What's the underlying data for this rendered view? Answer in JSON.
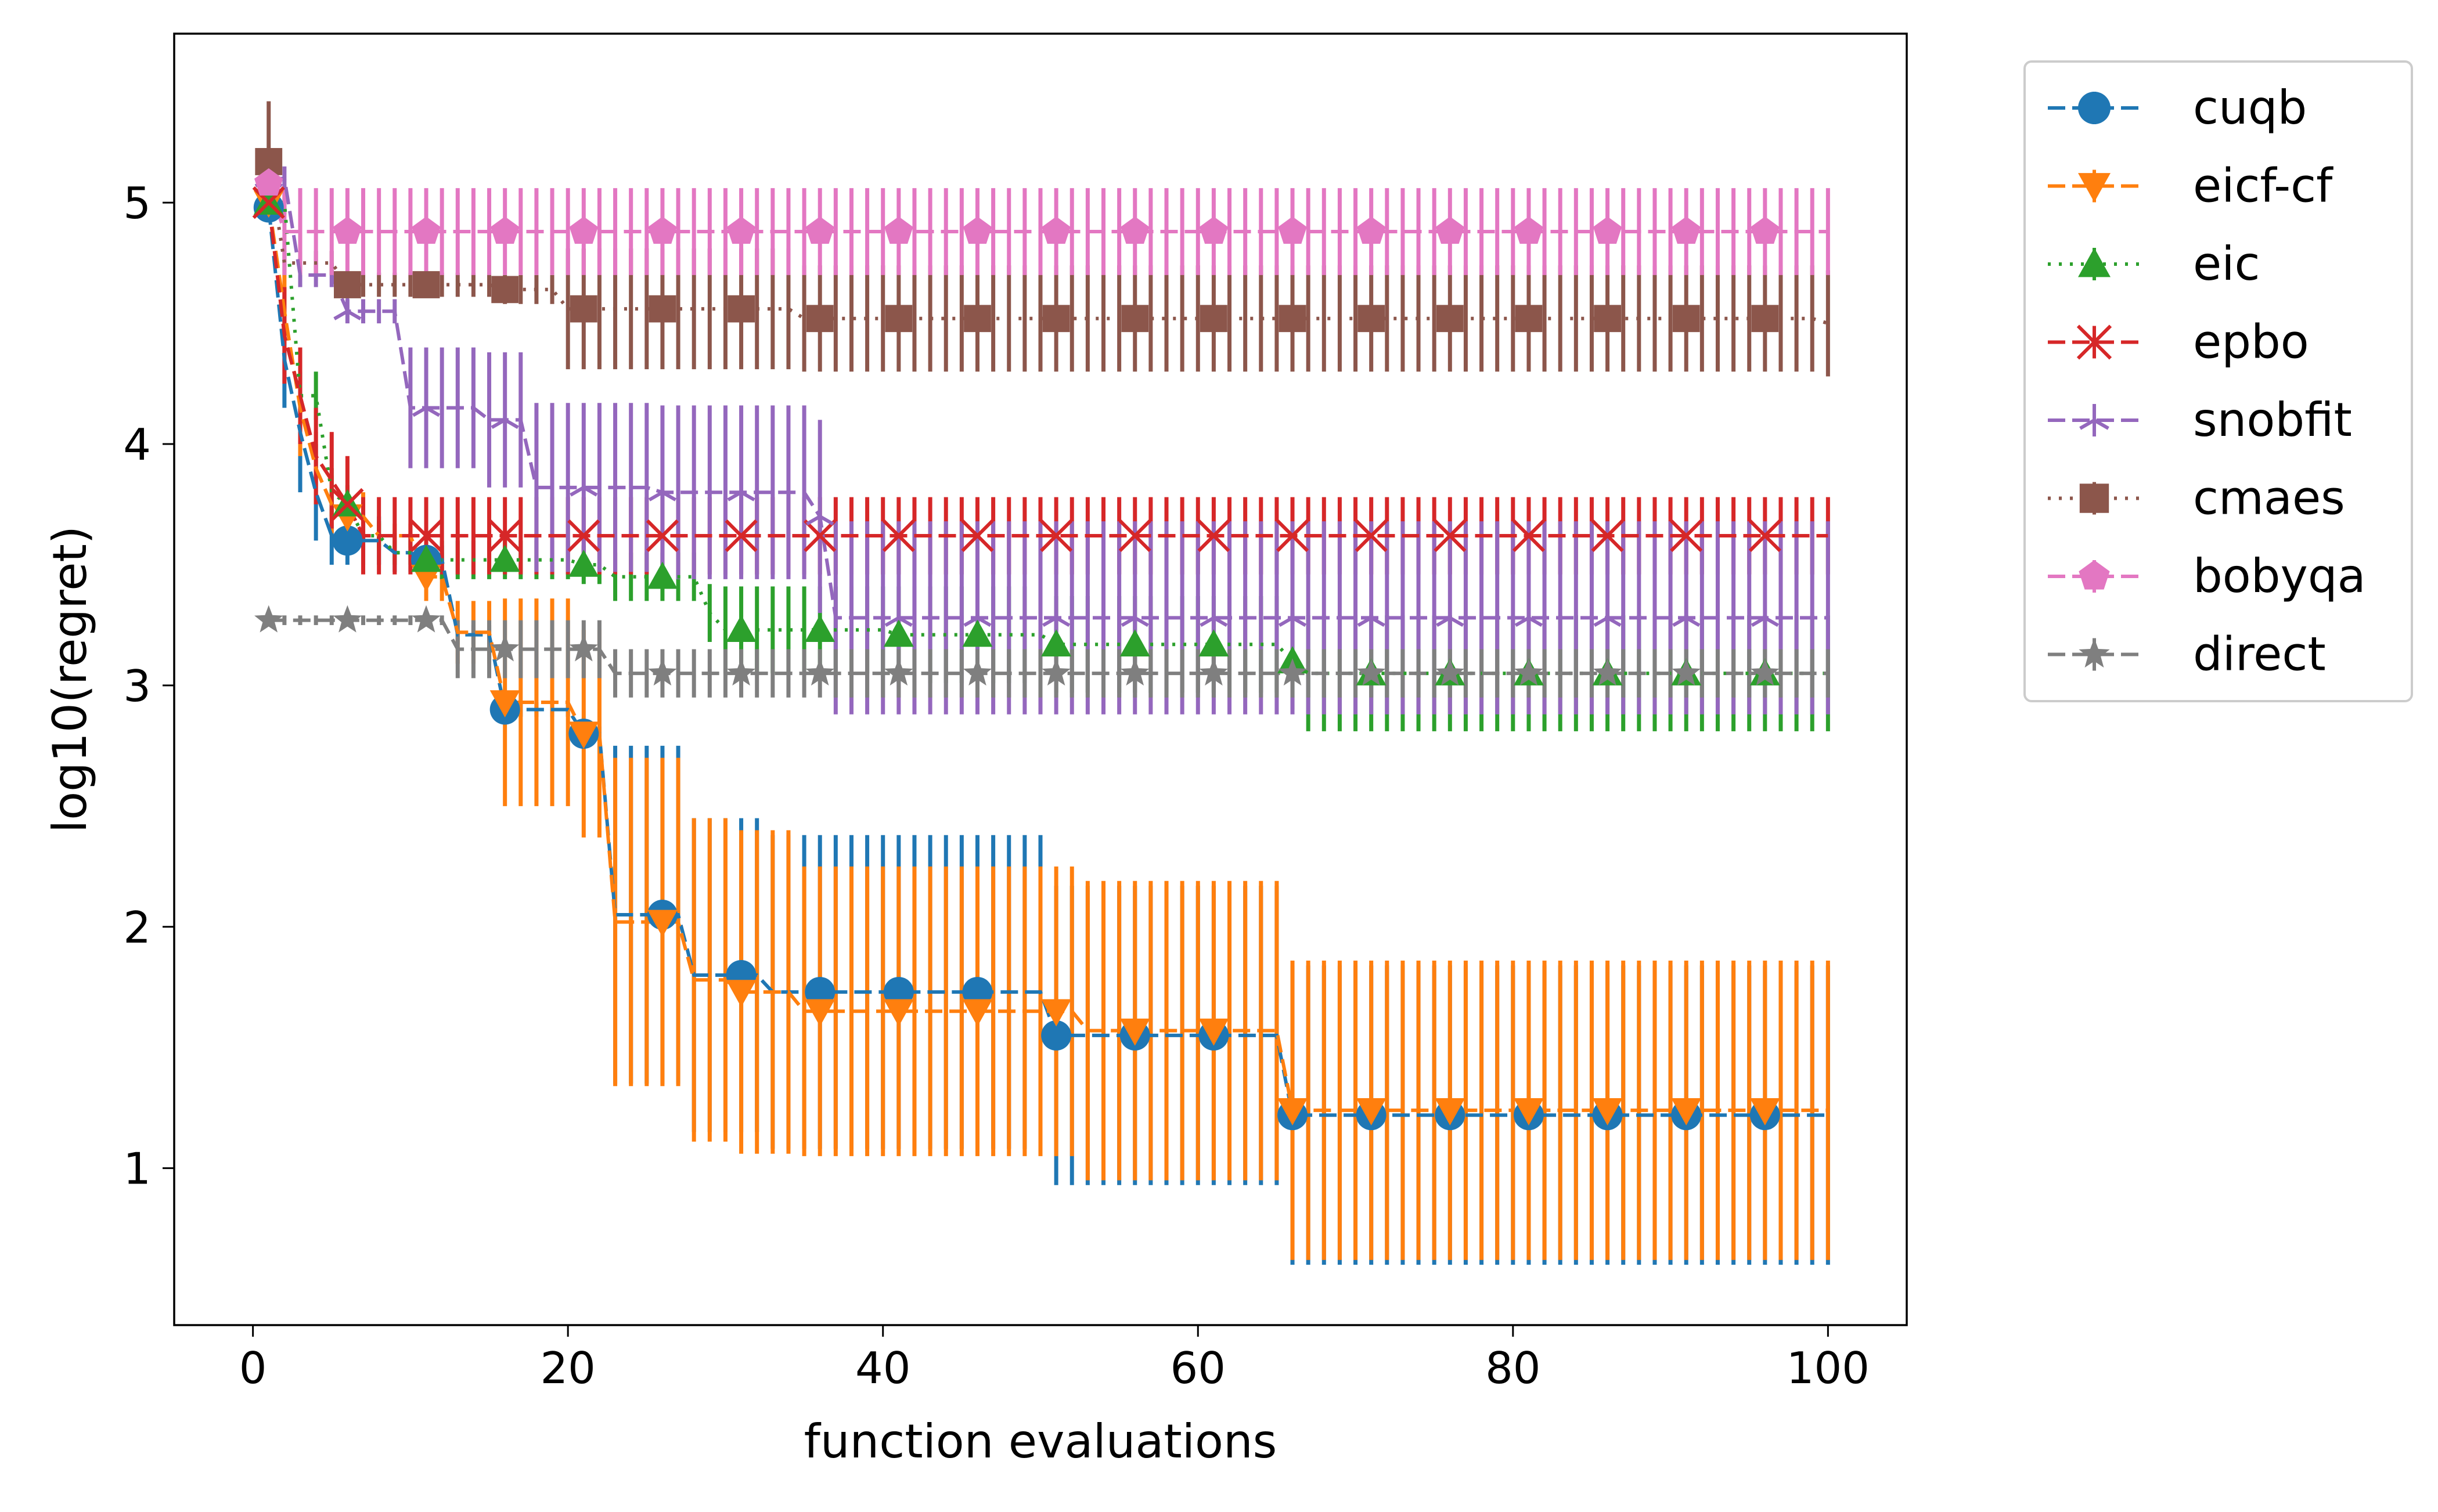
{
  "chart_data": {
    "type": "line",
    "xlabel": "function evaluations",
    "ylabel": "log10(regret)",
    "xlim": [
      -5,
      105
    ],
    "ylim": [
      0.35,
      5.7
    ],
    "xticks": [
      0,
      20,
      40,
      60,
      80,
      100
    ],
    "xtick_labels": [
      "0",
      "20",
      "40",
      "60",
      "80",
      "100"
    ],
    "yticks": [
      1,
      2,
      3,
      4,
      5
    ],
    "ytick_labels": [
      "1",
      "2",
      "3",
      "4",
      "5"
    ],
    "legend_position": "outside-top-right",
    "series": [
      {
        "name": "cuqb",
        "color": "#1f77b4",
        "linestyle": "dashed",
        "marker": "circle",
        "steps": [
          [
            1,
            4.98
          ],
          [
            2,
            4.35
          ],
          [
            3,
            4.05
          ],
          [
            4,
            3.8
          ],
          [
            5,
            3.62
          ],
          [
            6,
            3.6
          ],
          [
            9,
            3.55
          ],
          [
            11,
            3.52
          ],
          [
            13,
            3.21
          ],
          [
            16,
            2.9
          ],
          [
            21,
            2.8
          ],
          [
            23,
            2.05
          ],
          [
            28,
            1.8
          ],
          [
            33,
            1.73
          ],
          [
            51,
            1.55
          ],
          [
            66,
            1.22
          ],
          [
            100,
            1.22
          ]
        ],
        "err_steps": [
          [
            1,
            0.05
          ],
          [
            2,
            0.2
          ],
          [
            3,
            0.25
          ],
          [
            4,
            0.2
          ],
          [
            5,
            0.12
          ],
          [
            6,
            0.1
          ],
          [
            9,
            0.08
          ],
          [
            11,
            0.06
          ],
          [
            13,
            0.04
          ],
          [
            16,
            0.03
          ],
          [
            21,
            0.03
          ],
          [
            23,
            0.7
          ],
          [
            28,
            0.65
          ],
          [
            33,
            0.65
          ],
          [
            51,
            0.62
          ],
          [
            66,
            0.62
          ],
          [
            100,
            0.62
          ]
        ]
      },
      {
        "name": "eicf-cf",
        "color": "#ff7f0e",
        "linestyle": "dashed",
        "marker": "triangle-down",
        "steps": [
          [
            1,
            5.0
          ],
          [
            2,
            4.55
          ],
          [
            3,
            4.15
          ],
          [
            4,
            3.9
          ],
          [
            5,
            3.75
          ],
          [
            6,
            3.7
          ],
          [
            8,
            3.62
          ],
          [
            11,
            3.45
          ],
          [
            13,
            3.22
          ],
          [
            16,
            2.93
          ],
          [
            21,
            2.8
          ],
          [
            23,
            2.02
          ],
          [
            28,
            1.78
          ],
          [
            31,
            1.73
          ],
          [
            35,
            1.65
          ],
          [
            51,
            1.65
          ],
          [
            53,
            1.57
          ],
          [
            66,
            1.24
          ],
          [
            100,
            1.24
          ]
        ],
        "err_steps": [
          [
            1,
            0.05
          ],
          [
            2,
            0.15
          ],
          [
            3,
            0.2
          ],
          [
            4,
            0.15
          ],
          [
            5,
            0.12
          ],
          [
            6,
            0.1
          ],
          [
            8,
            0.05
          ],
          [
            11,
            0.1
          ],
          [
            13,
            0.13
          ],
          [
            16,
            0.43
          ],
          [
            21,
            0.43
          ],
          [
            23,
            0.68
          ],
          [
            28,
            0.67
          ],
          [
            31,
            0.67
          ],
          [
            35,
            0.6
          ],
          [
            51,
            0.6
          ],
          [
            53,
            0.62
          ],
          [
            66,
            0.62
          ],
          [
            100,
            0.62
          ]
        ]
      },
      {
        "name": "eic",
        "color": "#2ca02c",
        "linestyle": "dotted",
        "marker": "triangle-up",
        "steps": [
          [
            1,
            5.0
          ],
          [
            3,
            4.2
          ],
          [
            5,
            3.8
          ],
          [
            6,
            3.75
          ],
          [
            7,
            3.62
          ],
          [
            9,
            3.55
          ],
          [
            11,
            3.52
          ],
          [
            21,
            3.5
          ],
          [
            23,
            3.45
          ],
          [
            29,
            3.3
          ],
          [
            30,
            3.23
          ],
          [
            41,
            3.21
          ],
          [
            51,
            3.17
          ],
          [
            66,
            3.1
          ],
          [
            67,
            3.05
          ],
          [
            100,
            3.05
          ]
        ],
        "err_steps": [
          [
            1,
            0.05
          ],
          [
            3,
            0.1
          ],
          [
            5,
            0.1
          ],
          [
            6,
            0.08
          ],
          [
            7,
            0.06
          ],
          [
            9,
            0.05
          ],
          [
            11,
            0.08
          ],
          [
            21,
            0.08
          ],
          [
            23,
            0.1
          ],
          [
            29,
            0.12
          ],
          [
            30,
            0.18
          ],
          [
            41,
            0.2
          ],
          [
            51,
            0.2
          ],
          [
            66,
            0.2
          ],
          [
            67,
            0.24
          ],
          [
            100,
            0.24
          ]
        ]
      },
      {
        "name": "epbo",
        "color": "#d62728",
        "linestyle": "dashed",
        "marker": "x",
        "steps": [
          [
            1,
            5.0
          ],
          [
            2,
            4.45
          ],
          [
            3,
            4.2
          ],
          [
            4,
            3.95
          ],
          [
            5,
            3.85
          ],
          [
            6,
            3.75
          ],
          [
            7,
            3.62
          ],
          [
            100,
            3.62
          ]
        ],
        "err_steps": [
          [
            1,
            0.05
          ],
          [
            2,
            0.2
          ],
          [
            3,
            0.2
          ],
          [
            4,
            0.2
          ],
          [
            5,
            0.2
          ],
          [
            6,
            0.2
          ],
          [
            7,
            0.16
          ],
          [
            100,
            0.16
          ]
        ]
      },
      {
        "name": "snobfit",
        "color": "#9467bd",
        "linestyle": "dashed",
        "marker": "tri",
        "steps": [
          [
            1,
            5.1
          ],
          [
            3,
            4.7
          ],
          [
            6,
            4.55
          ],
          [
            10,
            4.15
          ],
          [
            15,
            4.1
          ],
          [
            18,
            3.82
          ],
          [
            26,
            3.8
          ],
          [
            36,
            3.7
          ],
          [
            37,
            3.28
          ],
          [
            100,
            3.28
          ]
        ],
        "err_steps": [
          [
            1,
            0.05
          ],
          [
            3,
            0.05
          ],
          [
            6,
            0.05
          ],
          [
            10,
            0.25
          ],
          [
            15,
            0.28
          ],
          [
            18,
            0.35
          ],
          [
            26,
            0.36
          ],
          [
            36,
            0.4
          ],
          [
            37,
            0.4
          ],
          [
            100,
            0.4
          ]
        ]
      },
      {
        "name": "cmaes",
        "color": "#8c564b",
        "linestyle": "dotted",
        "marker": "square",
        "steps": [
          [
            1,
            5.17
          ],
          [
            2,
            4.75
          ],
          [
            6,
            4.66
          ],
          [
            16,
            4.64
          ],
          [
            20,
            4.56
          ],
          [
            35,
            4.52
          ],
          [
            100,
            4.5
          ]
        ],
        "err_steps": [
          [
            1,
            0.25
          ],
          [
            2,
            0.05
          ],
          [
            6,
            0.05
          ],
          [
            16,
            0.06
          ],
          [
            20,
            0.25
          ],
          [
            35,
            0.22
          ],
          [
            100,
            0.22
          ]
        ]
      },
      {
        "name": "bobyqa",
        "color": "#e377c2",
        "linestyle": "dashed",
        "marker": "pentagon",
        "steps": [
          [
            1,
            5.08
          ],
          [
            2,
            4.88
          ],
          [
            100,
            4.88
          ]
        ],
        "err_steps": [
          [
            1,
            0.05
          ],
          [
            2,
            0.18
          ],
          [
            100,
            0.18
          ]
        ]
      },
      {
        "name": "direct",
        "color": "#7f7f7f",
        "linestyle": "dashed",
        "marker": "star",
        "steps": [
          [
            1,
            3.27
          ],
          [
            13,
            3.15
          ],
          [
            23,
            3.05
          ],
          [
            100,
            3.05
          ]
        ],
        "err_steps": [
          [
            1,
            0.02
          ],
          [
            13,
            0.12
          ],
          [
            23,
            0.1
          ],
          [
            100,
            0.1
          ]
        ]
      }
    ]
  }
}
